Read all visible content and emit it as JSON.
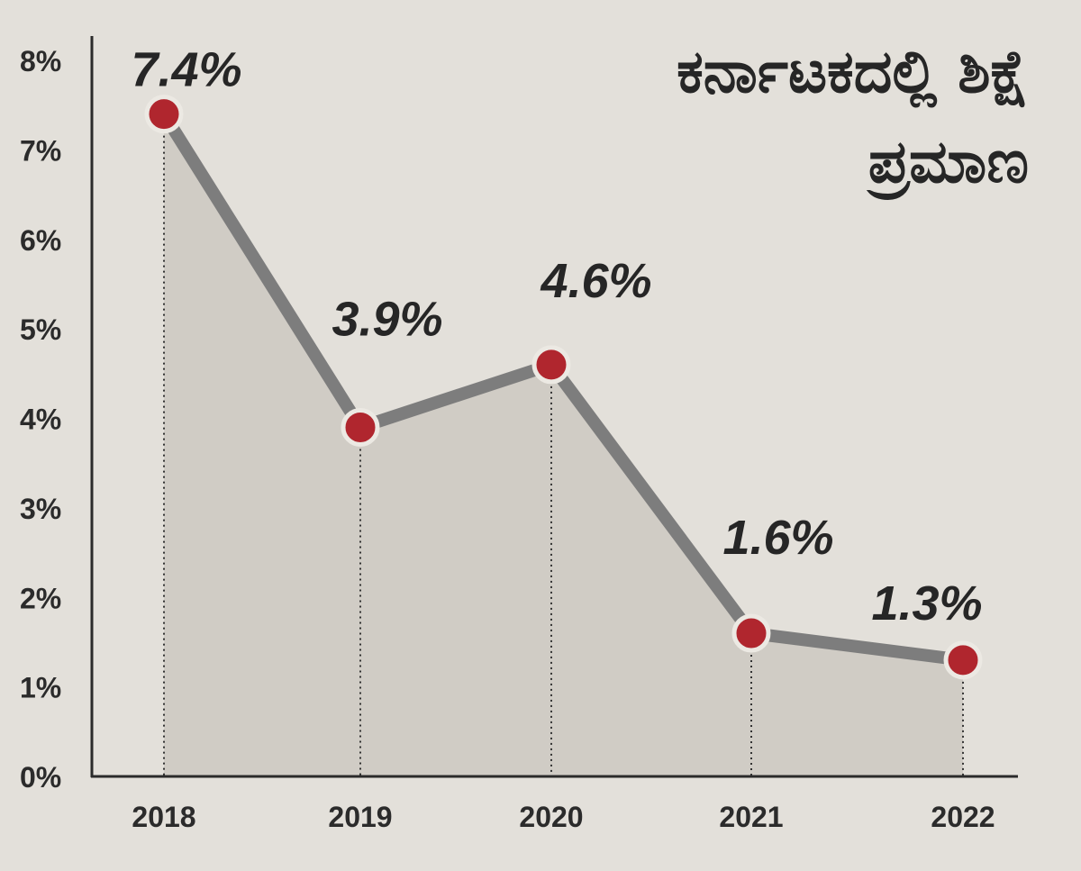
{
  "chart_data": {
    "type": "area",
    "title_lines": [
      "ಕರ್ನಾಟಕದಲ್ಲಿ ಶಿಕ್ಷೆ",
      "ಪ್ರಮಾಣ"
    ],
    "xlabel": "",
    "ylabel": "",
    "categories": [
      "2018",
      "2019",
      "2020",
      "2021",
      "2022"
    ],
    "values": [
      7.4,
      3.9,
      4.6,
      1.6,
      1.3
    ],
    "data_labels": [
      "7.4%",
      "3.9%",
      "4.6%",
      "1.6%",
      "1.3%"
    ],
    "y_ticks": [
      "0%",
      "1%",
      "2%",
      "3%",
      "4%",
      "5%",
      "6%",
      "7%",
      "8%"
    ],
    "ylim": [
      0,
      8
    ],
    "grid": false,
    "legend": "none",
    "colors": {
      "background": "#e3e0da",
      "area_fill": "#d0ccc5",
      "line": "#7d7d7d",
      "marker": "#b0262e",
      "marker_ring": "#ece9e3",
      "axis": "#2b2b2b",
      "text": "#262626"
    }
  }
}
